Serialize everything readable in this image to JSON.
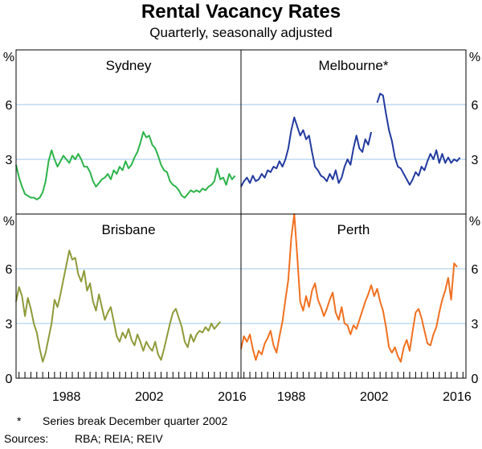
{
  "title": "Rental Vacancy Rates",
  "subtitle": "Quarterly, seasonally adjusted",
  "footnote": {
    "mark": "*",
    "text": "Series break December quarter 2002"
  },
  "sources": {
    "label": "Sources:",
    "text": "RBA; REIA; REIV"
  },
  "chart_data": [
    {
      "type": "line",
      "title": "Sydney",
      "position": "top-left",
      "ylabel": "%",
      "ylim": [
        0,
        9
      ],
      "yticks": [
        3,
        6
      ],
      "xlim": [
        1980,
        2018
      ],
      "xticks": [
        1988,
        2002,
        2016
      ],
      "color": "#2db34a",
      "segments": [
        [
          [
            1980.0,
            2.7
          ],
          [
            1980.5,
            2.0
          ],
          [
            1981.0,
            1.5
          ],
          [
            1981.5,
            1.1
          ],
          [
            1982.0,
            1.0
          ],
          [
            1982.5,
            0.9
          ],
          [
            1983.0,
            0.9
          ],
          [
            1983.5,
            0.8
          ],
          [
            1984.0,
            0.9
          ],
          [
            1984.5,
            1.2
          ],
          [
            1985.0,
            1.8
          ],
          [
            1985.5,
            2.9
          ],
          [
            1986.0,
            3.5
          ],
          [
            1986.5,
            3.0
          ],
          [
            1987.0,
            2.6
          ],
          [
            1987.5,
            2.9
          ],
          [
            1988.0,
            3.2
          ],
          [
            1988.5,
            3.0
          ],
          [
            1989.0,
            2.8
          ],
          [
            1989.5,
            3.2
          ],
          [
            1990.0,
            3.0
          ],
          [
            1990.5,
            3.3
          ],
          [
            1991.0,
            3.0
          ],
          [
            1991.5,
            2.6
          ],
          [
            1992.0,
            2.6
          ],
          [
            1992.5,
            2.3
          ],
          [
            1993.0,
            1.8
          ],
          [
            1993.5,
            1.5
          ],
          [
            1994.0,
            1.7
          ],
          [
            1994.5,
            1.9
          ],
          [
            1995.0,
            2.0
          ],
          [
            1995.5,
            2.2
          ],
          [
            1996.0,
            1.9
          ],
          [
            1996.5,
            2.4
          ],
          [
            1997.0,
            2.2
          ],
          [
            1997.5,
            2.6
          ],
          [
            1998.0,
            2.4
          ],
          [
            1998.5,
            2.9
          ],
          [
            1999.0,
            2.5
          ],
          [
            1999.5,
            2.7
          ],
          [
            2000.0,
            3.1
          ],
          [
            2000.5,
            3.4
          ],
          [
            2001.0,
            3.9
          ],
          [
            2001.5,
            4.5
          ],
          [
            2002.0,
            4.2
          ],
          [
            2002.5,
            4.3
          ],
          [
            2003.0,
            3.8
          ],
          [
            2003.5,
            3.6
          ],
          [
            2004.0,
            3.2
          ],
          [
            2004.5,
            2.7
          ],
          [
            2005.0,
            2.4
          ],
          [
            2005.5,
            2.3
          ],
          [
            2006.0,
            1.8
          ],
          [
            2006.5,
            1.6
          ],
          [
            2007.0,
            1.5
          ],
          [
            2007.5,
            1.3
          ],
          [
            2008.0,
            1.0
          ],
          [
            2008.5,
            0.9
          ],
          [
            2009.0,
            1.1
          ],
          [
            2009.5,
            1.3
          ],
          [
            2010.0,
            1.2
          ],
          [
            2010.5,
            1.3
          ],
          [
            2011.0,
            1.2
          ],
          [
            2011.5,
            1.4
          ],
          [
            2012.0,
            1.3
          ],
          [
            2012.5,
            1.5
          ],
          [
            2013.0,
            1.6
          ],
          [
            2013.5,
            1.8
          ],
          [
            2014.0,
            2.5
          ],
          [
            2014.5,
            1.9
          ],
          [
            2015.0,
            2.0
          ],
          [
            2015.5,
            1.6
          ],
          [
            2016.0,
            2.2
          ],
          [
            2016.5,
            1.9
          ],
          [
            2017.0,
            2.1
          ]
        ]
      ]
    },
    {
      "type": "line",
      "title": "Melbourne*",
      "position": "top-right",
      "ylabel": "%",
      "ylim": [
        0,
        9
      ],
      "yticks": [
        3,
        6
      ],
      "xlim": [
        1980,
        2018
      ],
      "xticks": [
        1988,
        2002,
        2016
      ],
      "color": "#233a9e",
      "segments": [
        [
          [
            1980.0,
            1.5
          ],
          [
            1980.5,
            1.8
          ],
          [
            1981.0,
            2.0
          ],
          [
            1981.5,
            1.7
          ],
          [
            1982.0,
            2.1
          ],
          [
            1982.5,
            1.8
          ],
          [
            1983.0,
            1.9
          ],
          [
            1983.5,
            2.2
          ],
          [
            1984.0,
            2.0
          ],
          [
            1984.5,
            2.4
          ],
          [
            1985.0,
            2.3
          ],
          [
            1985.5,
            2.6
          ],
          [
            1986.0,
            2.5
          ],
          [
            1986.5,
            2.9
          ],
          [
            1987.0,
            2.6
          ],
          [
            1987.5,
            3.0
          ],
          [
            1988.0,
            3.6
          ],
          [
            1988.5,
            4.6
          ],
          [
            1989.0,
            5.3
          ],
          [
            1989.5,
            4.8
          ],
          [
            1990.0,
            4.3
          ],
          [
            1990.5,
            4.6
          ],
          [
            1991.0,
            4.1
          ],
          [
            1991.5,
            4.3
          ],
          [
            1992.0,
            3.4
          ],
          [
            1992.5,
            2.6
          ],
          [
            1993.0,
            2.4
          ],
          [
            1993.5,
            2.1
          ],
          [
            1994.0,
            2.0
          ],
          [
            1994.5,
            1.8
          ],
          [
            1995.0,
            2.2
          ],
          [
            1995.5,
            1.9
          ],
          [
            1996.0,
            2.4
          ],
          [
            1996.5,
            1.7
          ],
          [
            1997.0,
            2.0
          ],
          [
            1997.5,
            2.6
          ],
          [
            1998.0,
            3.0
          ],
          [
            1998.5,
            2.7
          ],
          [
            1999.0,
            3.6
          ],
          [
            1999.5,
            4.3
          ],
          [
            2000.0,
            3.6
          ],
          [
            2000.5,
            3.4
          ],
          [
            2001.0,
            4.1
          ],
          [
            2001.5,
            3.8
          ],
          [
            2002.0,
            4.5
          ]
        ],
        [
          [
            2003.0,
            6.1
          ],
          [
            2003.5,
            6.6
          ],
          [
            2004.0,
            6.5
          ],
          [
            2004.5,
            5.5
          ],
          [
            2005.0,
            4.6
          ],
          [
            2005.5,
            4.0
          ],
          [
            2006.0,
            3.1
          ],
          [
            2006.5,
            2.6
          ],
          [
            2007.0,
            2.5
          ],
          [
            2007.5,
            2.2
          ],
          [
            2008.0,
            1.9
          ],
          [
            2008.5,
            1.6
          ],
          [
            2009.0,
            1.9
          ],
          [
            2009.5,
            2.3
          ],
          [
            2010.0,
            2.1
          ],
          [
            2010.5,
            2.6
          ],
          [
            2011.0,
            2.4
          ],
          [
            2011.5,
            2.9
          ],
          [
            2012.0,
            3.3
          ],
          [
            2012.5,
            3.0
          ],
          [
            2013.0,
            3.5
          ],
          [
            2013.5,
            2.8
          ],
          [
            2014.0,
            3.3
          ],
          [
            2014.5,
            2.8
          ],
          [
            2015.0,
            3.1
          ],
          [
            2015.5,
            2.8
          ],
          [
            2016.0,
            3.0
          ],
          [
            2016.5,
            2.9
          ],
          [
            2017.0,
            3.1
          ]
        ]
      ]
    },
    {
      "type": "line",
      "title": "Brisbane",
      "position": "bottom-left",
      "ylabel": "%",
      "ylim": [
        0,
        9
      ],
      "yticks": [
        3,
        6
      ],
      "xlim": [
        1980,
        2018
      ],
      "xticks": [
        1988,
        2002,
        2016
      ],
      "color": "#8f9a3a",
      "segments": [
        [
          [
            1980.0,
            4.2
          ],
          [
            1980.5,
            5.0
          ],
          [
            1981.0,
            4.5
          ],
          [
            1981.5,
            3.4
          ],
          [
            1982.0,
            4.4
          ],
          [
            1982.5,
            3.8
          ],
          [
            1983.0,
            3.0
          ],
          [
            1983.5,
            2.5
          ],
          [
            1984.0,
            1.6
          ],
          [
            1984.5,
            0.9
          ],
          [
            1985.0,
            1.4
          ],
          [
            1985.5,
            2.2
          ],
          [
            1986.0,
            3.0
          ],
          [
            1986.5,
            4.3
          ],
          [
            1987.0,
            3.9
          ],
          [
            1987.5,
            4.6
          ],
          [
            1988.0,
            5.4
          ],
          [
            1988.5,
            6.2
          ],
          [
            1989.0,
            7.0
          ],
          [
            1989.5,
            6.5
          ],
          [
            1990.0,
            6.6
          ],
          [
            1990.5,
            5.7
          ],
          [
            1991.0,
            5.3
          ],
          [
            1991.5,
            5.9
          ],
          [
            1992.0,
            4.8
          ],
          [
            1992.5,
            5.2
          ],
          [
            1993.0,
            4.2
          ],
          [
            1993.5,
            3.7
          ],
          [
            1994.0,
            4.6
          ],
          [
            1994.5,
            3.9
          ],
          [
            1995.0,
            3.2
          ],
          [
            1995.5,
            3.6
          ],
          [
            1996.0,
            3.9
          ],
          [
            1996.5,
            3.1
          ],
          [
            1997.0,
            2.3
          ],
          [
            1997.5,
            2.0
          ],
          [
            1998.0,
            2.5
          ],
          [
            1998.5,
            2.2
          ],
          [
            1999.0,
            2.7
          ],
          [
            1999.5,
            2.1
          ],
          [
            2000.0,
            1.8
          ],
          [
            2000.5,
            2.4
          ],
          [
            2001.0,
            2.0
          ],
          [
            2001.5,
            1.5
          ],
          [
            2002.0,
            2.0
          ],
          [
            2002.5,
            1.7
          ],
          [
            2003.0,
            1.5
          ],
          [
            2003.5,
            2.0
          ],
          [
            2004.0,
            1.3
          ],
          [
            2004.5,
            1.0
          ],
          [
            2005.0,
            1.6
          ],
          [
            2005.5,
            2.3
          ],
          [
            2006.0,
            3.0
          ],
          [
            2006.5,
            3.6
          ],
          [
            2007.0,
            3.8
          ],
          [
            2007.5,
            3.3
          ],
          [
            2008.0,
            2.8
          ],
          [
            2008.5,
            2.0
          ],
          [
            2009.0,
            1.7
          ],
          [
            2009.5,
            2.4
          ],
          [
            2010.0,
            2.0
          ],
          [
            2010.5,
            2.4
          ],
          [
            2011.0,
            2.6
          ],
          [
            2011.5,
            2.5
          ],
          [
            2012.0,
            2.8
          ],
          [
            2012.5,
            2.6
          ],
          [
            2013.0,
            3.0
          ],
          [
            2013.5,
            2.7
          ],
          [
            2014.0,
            2.9
          ],
          [
            2014.5,
            3.1
          ]
        ]
      ]
    },
    {
      "type": "line",
      "title": "Perth",
      "position": "bottom-right",
      "ylabel": "%",
      "ylim": [
        0,
        9
      ],
      "yticks": [
        3,
        6
      ],
      "xlim": [
        1980,
        2018
      ],
      "xticks": [
        1988,
        2002,
        2016
      ],
      "color": "#f07020",
      "segments": [
        [
          [
            1980.0,
            1.6
          ],
          [
            1980.5,
            2.3
          ],
          [
            1981.0,
            2.0
          ],
          [
            1981.5,
            2.4
          ],
          [
            1982.0,
            1.6
          ],
          [
            1982.5,
            1.0
          ],
          [
            1983.0,
            1.5
          ],
          [
            1983.5,
            1.3
          ],
          [
            1984.0,
            1.9
          ],
          [
            1984.5,
            2.2
          ],
          [
            1985.0,
            2.6
          ],
          [
            1985.5,
            1.8
          ],
          [
            1986.0,
            1.4
          ],
          [
            1986.5,
            2.3
          ],
          [
            1987.0,
            3.1
          ],
          [
            1987.5,
            4.3
          ],
          [
            1988.0,
            5.4
          ],
          [
            1988.5,
            7.7
          ],
          [
            1989.0,
            9.0
          ],
          [
            1989.5,
            6.7
          ],
          [
            1990.0,
            4.2
          ],
          [
            1990.5,
            3.7
          ],
          [
            1991.0,
            4.5
          ],
          [
            1991.5,
            3.9
          ],
          [
            1992.0,
            4.8
          ],
          [
            1992.5,
            5.2
          ],
          [
            1993.0,
            4.3
          ],
          [
            1993.5,
            3.9
          ],
          [
            1994.0,
            3.4
          ],
          [
            1994.5,
            3.8
          ],
          [
            1995.0,
            4.3
          ],
          [
            1995.5,
            4.7
          ],
          [
            1996.0,
            3.6
          ],
          [
            1996.5,
            3.2
          ],
          [
            1997.0,
            3.9
          ],
          [
            1997.5,
            3.0
          ],
          [
            1998.0,
            2.9
          ],
          [
            1998.5,
            2.4
          ],
          [
            1999.0,
            2.9
          ],
          [
            1999.5,
            2.7
          ],
          [
            2000.0,
            3.2
          ],
          [
            2000.5,
            3.7
          ],
          [
            2001.0,
            4.2
          ],
          [
            2001.5,
            4.6
          ],
          [
            2002.0,
            5.1
          ],
          [
            2002.5,
            4.5
          ],
          [
            2003.0,
            4.9
          ],
          [
            2003.5,
            4.2
          ],
          [
            2004.0,
            3.7
          ],
          [
            2004.5,
            2.8
          ],
          [
            2005.0,
            1.7
          ],
          [
            2005.5,
            1.4
          ],
          [
            2006.0,
            1.7
          ],
          [
            2006.5,
            1.2
          ],
          [
            2007.0,
            0.9
          ],
          [
            2007.5,
            1.7
          ],
          [
            2008.0,
            2.1
          ],
          [
            2008.5,
            1.5
          ],
          [
            2009.0,
            2.6
          ],
          [
            2009.5,
            3.6
          ],
          [
            2010.0,
            3.8
          ],
          [
            2010.5,
            3.3
          ],
          [
            2011.0,
            2.6
          ],
          [
            2011.5,
            1.9
          ],
          [
            2012.0,
            1.8
          ],
          [
            2012.5,
            2.4
          ],
          [
            2013.0,
            2.8
          ],
          [
            2013.5,
            3.6
          ],
          [
            2014.0,
            4.3
          ],
          [
            2014.5,
            4.8
          ],
          [
            2015.0,
            5.5
          ],
          [
            2015.5,
            4.3
          ],
          [
            2016.0,
            6.3
          ],
          [
            2016.5,
            6.1
          ]
        ]
      ]
    }
  ]
}
